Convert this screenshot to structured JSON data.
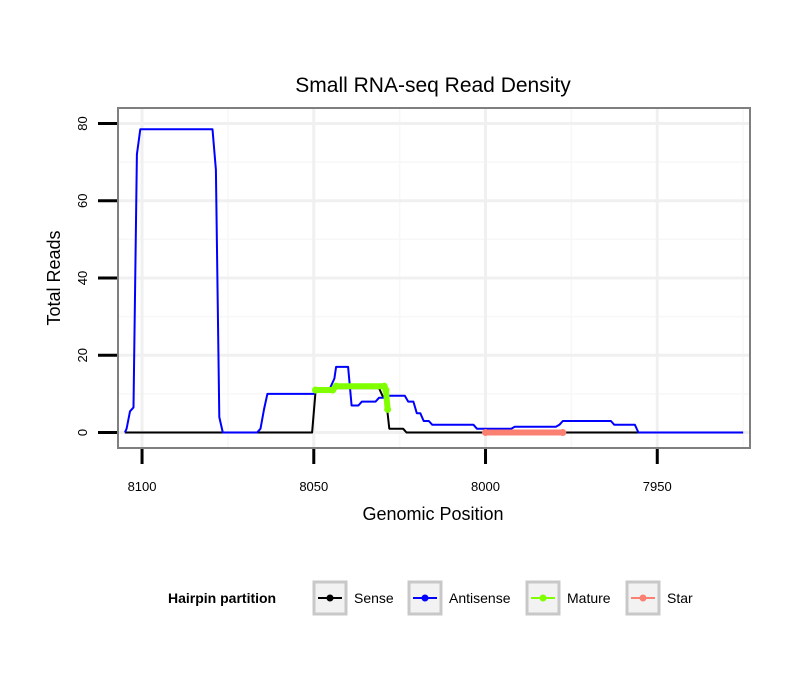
{
  "chart_data": {
    "type": "line",
    "title": "Small RNA-seq Read Density",
    "xlabel": "Genomic Position",
    "ylabel": "Total Reads",
    "xlim": [
      8107,
      7923
    ],
    "x_reversed": true,
    "ylim": [
      -4,
      84
    ],
    "x_ticks": [
      8100,
      8050,
      8000,
      7950
    ],
    "x_tick_labels": [
      "8100",
      "8050",
      "8000",
      "7950"
    ],
    "y_ticks": [
      0,
      20,
      40,
      60,
      80
    ],
    "y_tick_labels": [
      "0",
      "20",
      "40",
      "60",
      "80"
    ],
    "grid": true,
    "legend": {
      "title": "Hairpin partition",
      "position": "bottom",
      "entries": [
        {
          "label": "Sense",
          "color": "#000000"
        },
        {
          "label": "Antisense",
          "color": "#0000ff"
        },
        {
          "label": "Mature",
          "color": "#7fff00"
        },
        {
          "label": "Star",
          "color": "#fa8072"
        }
      ]
    },
    "series": [
      {
        "name": "Sense",
        "color": "#000000",
        "style": "line",
        "points": [
          [
            8105,
            0
          ],
          [
            8050.5,
            0
          ],
          [
            8049.5,
            10.5
          ],
          [
            8046,
            10.5
          ],
          [
            8044.5,
            11.5
          ],
          [
            8031,
            11.5
          ],
          [
            8030,
            9.5
          ],
          [
            8029,
            9
          ],
          [
            8028,
            1
          ],
          [
            8024,
            1
          ],
          [
            8023,
            0
          ],
          [
            7925,
            0
          ]
        ]
      },
      {
        "name": "Antisense",
        "color": "#0000ff",
        "style": "line",
        "points": [
          [
            8105,
            0
          ],
          [
            8104.5,
            1
          ],
          [
            8103.5,
            5.5
          ],
          [
            8102.5,
            6.5
          ],
          [
            8101.5,
            72
          ],
          [
            8100.5,
            78.5
          ],
          [
            8079.5,
            78.5
          ],
          [
            8078.5,
            68
          ],
          [
            8077.5,
            4
          ],
          [
            8076.5,
            0
          ],
          [
            8066.5,
            0
          ],
          [
            8065.5,
            1
          ],
          [
            8064.5,
            6
          ],
          [
            8063.5,
            10
          ],
          [
            8050,
            10
          ],
          [
            8049,
            11
          ],
          [
            8045.5,
            11
          ],
          [
            8044,
            14
          ],
          [
            8043.5,
            17
          ],
          [
            8040,
            17
          ],
          [
            8039,
            7
          ],
          [
            8037,
            7
          ],
          [
            8036,
            8
          ],
          [
            8032,
            8
          ],
          [
            8031,
            9
          ],
          [
            8029,
            9
          ],
          [
            8028,
            9.5
          ],
          [
            8023.5,
            9.5
          ],
          [
            8022.5,
            8
          ],
          [
            8021,
            8
          ],
          [
            8020,
            5
          ],
          [
            8019,
            5
          ],
          [
            8018,
            3
          ],
          [
            8016.5,
            3
          ],
          [
            8015.5,
            2
          ],
          [
            8003.5,
            2
          ],
          [
            8002.5,
            1
          ],
          [
            7992.5,
            1
          ],
          [
            7991.5,
            1.5
          ],
          [
            7979.5,
            1.5
          ],
          [
            7978.5,
            2
          ],
          [
            7977.5,
            3
          ],
          [
            7963.5,
            3
          ],
          [
            7962.5,
            2
          ],
          [
            7956.5,
            2
          ],
          [
            7955.5,
            0
          ],
          [
            7925,
            0
          ]
        ]
      },
      {
        "name": "Mature",
        "color": "#7fff00",
        "style": "thick",
        "points": [
          [
            8049.5,
            11
          ],
          [
            8044.5,
            11
          ],
          [
            8043.5,
            12
          ],
          [
            8029.5,
            12
          ],
          [
            8029,
            11
          ],
          [
            8028.5,
            6
          ]
        ]
      },
      {
        "name": "Star",
        "color": "#fa8072",
        "style": "thick",
        "points": [
          [
            8000,
            0
          ],
          [
            7977.5,
            0
          ]
        ]
      }
    ]
  }
}
